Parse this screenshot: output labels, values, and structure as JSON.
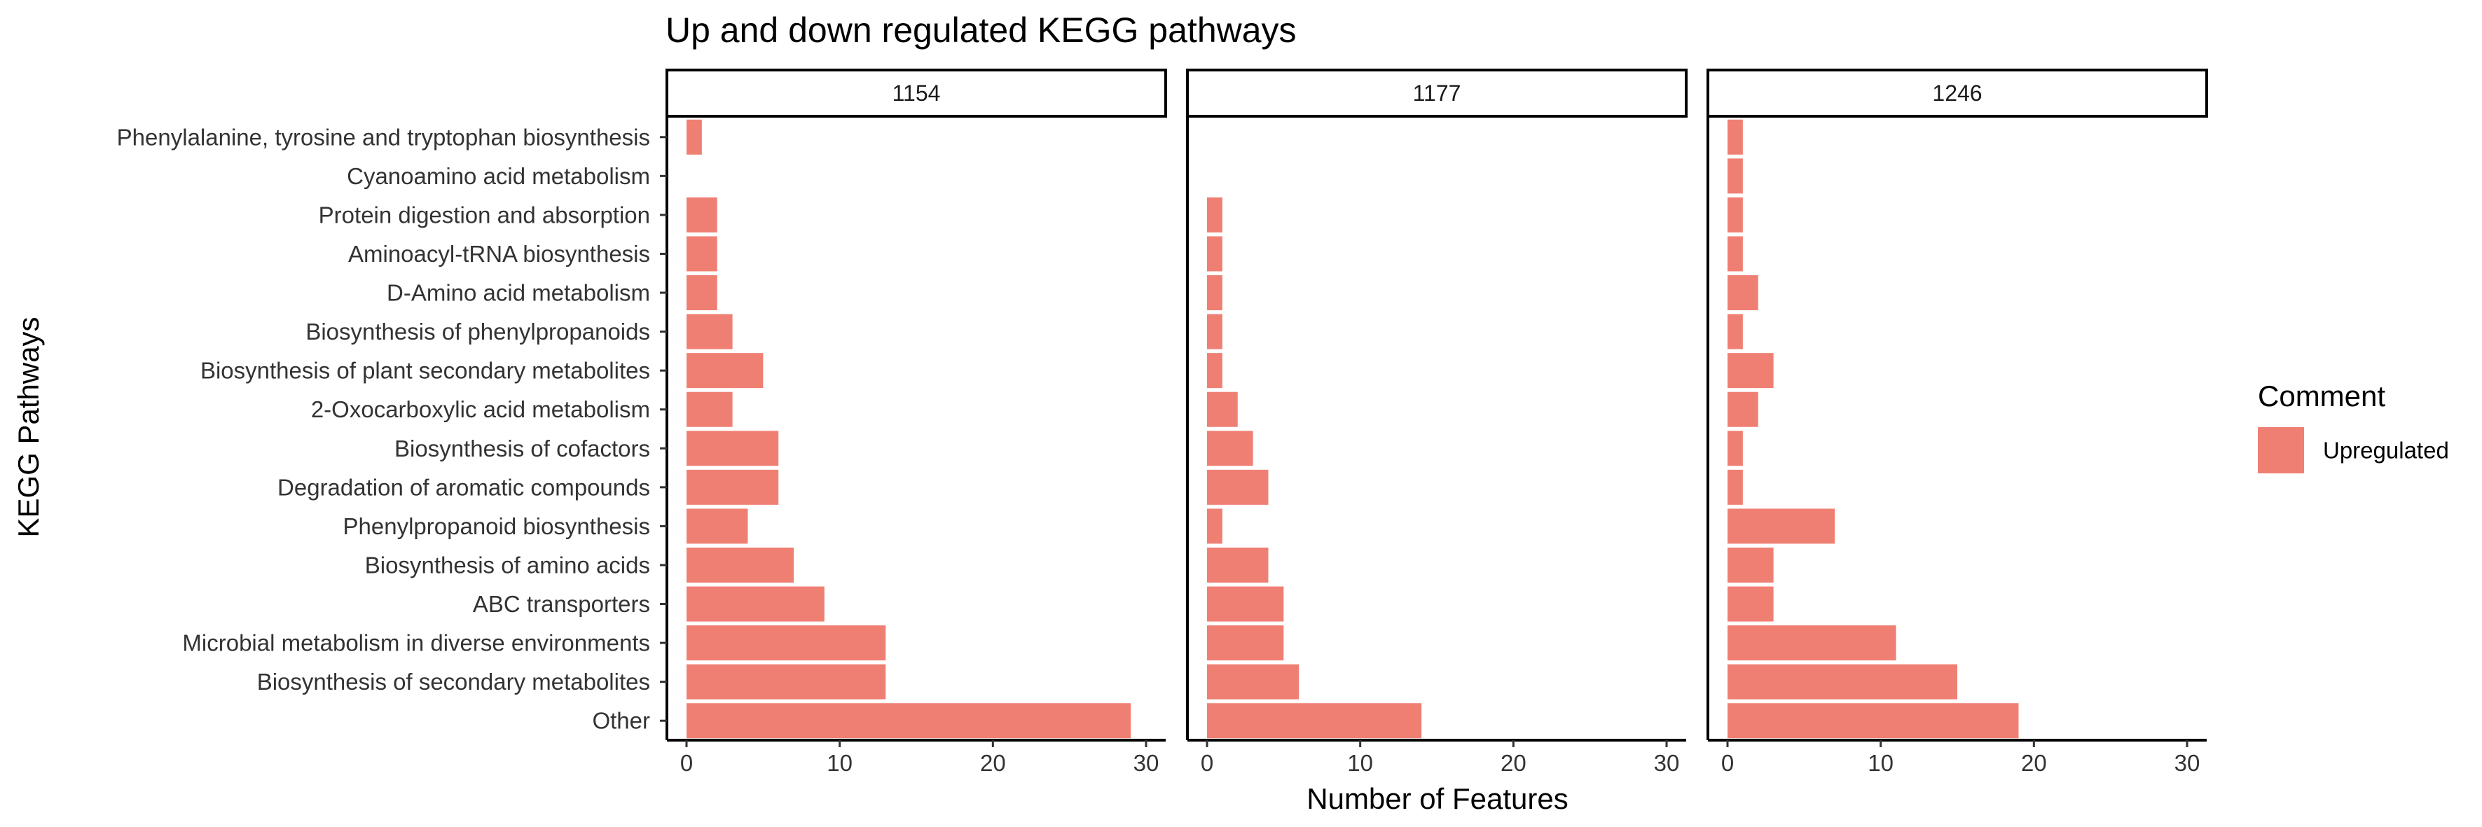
{
  "chart_data": {
    "type": "bar",
    "orientation": "horizontal",
    "faceted": true,
    "title": "Up and down regulated KEGG pathways",
    "xlabel": "Number of Features",
    "ylabel": "KEGG Pathways",
    "xlim": [
      0,
      30
    ],
    "x_ticks": [
      0,
      10,
      20,
      30
    ],
    "x_tick_labels": [
      "0",
      "10",
      "20",
      "30"
    ],
    "grid": false,
    "legend": {
      "title": "Comment",
      "position": "right",
      "items": [
        {
          "label": "Upregulated",
          "color": "#F07F73"
        }
      ]
    },
    "bar_color": "#F07F73",
    "categories": [
      "Phenylalanine, tyrosine and tryptophan biosynthesis",
      "Cyanoamino acid metabolism",
      "Protein digestion and absorption",
      "Aminoacyl-tRNA biosynthesis",
      "D-Amino acid metabolism",
      "Biosynthesis of phenylpropanoids",
      "Biosynthesis of plant secondary metabolites",
      "2-Oxocarboxylic acid metabolism",
      "Biosynthesis of cofactors",
      "Degradation of aromatic compounds",
      "Phenylpropanoid biosynthesis",
      "Biosynthesis of amino acids",
      "ABC transporters",
      "Microbial metabolism in diverse environments",
      "Biosynthesis of secondary metabolites",
      "Other"
    ],
    "facets": [
      {
        "label": "1154",
        "values": [
          1,
          0,
          2,
          2,
          2,
          3,
          5,
          3,
          6,
          6,
          4,
          7,
          9,
          13,
          13,
          29
        ]
      },
      {
        "label": "1177",
        "values": [
          0,
          0,
          1,
          1,
          1,
          1,
          1,
          2,
          3,
          4,
          1,
          4,
          5,
          5,
          6,
          14
        ]
      },
      {
        "label": "1246",
        "values": [
          1,
          1,
          1,
          1,
          2,
          1,
          3,
          2,
          1,
          1,
          7,
          3,
          3,
          11,
          15,
          19
        ]
      }
    ]
  }
}
